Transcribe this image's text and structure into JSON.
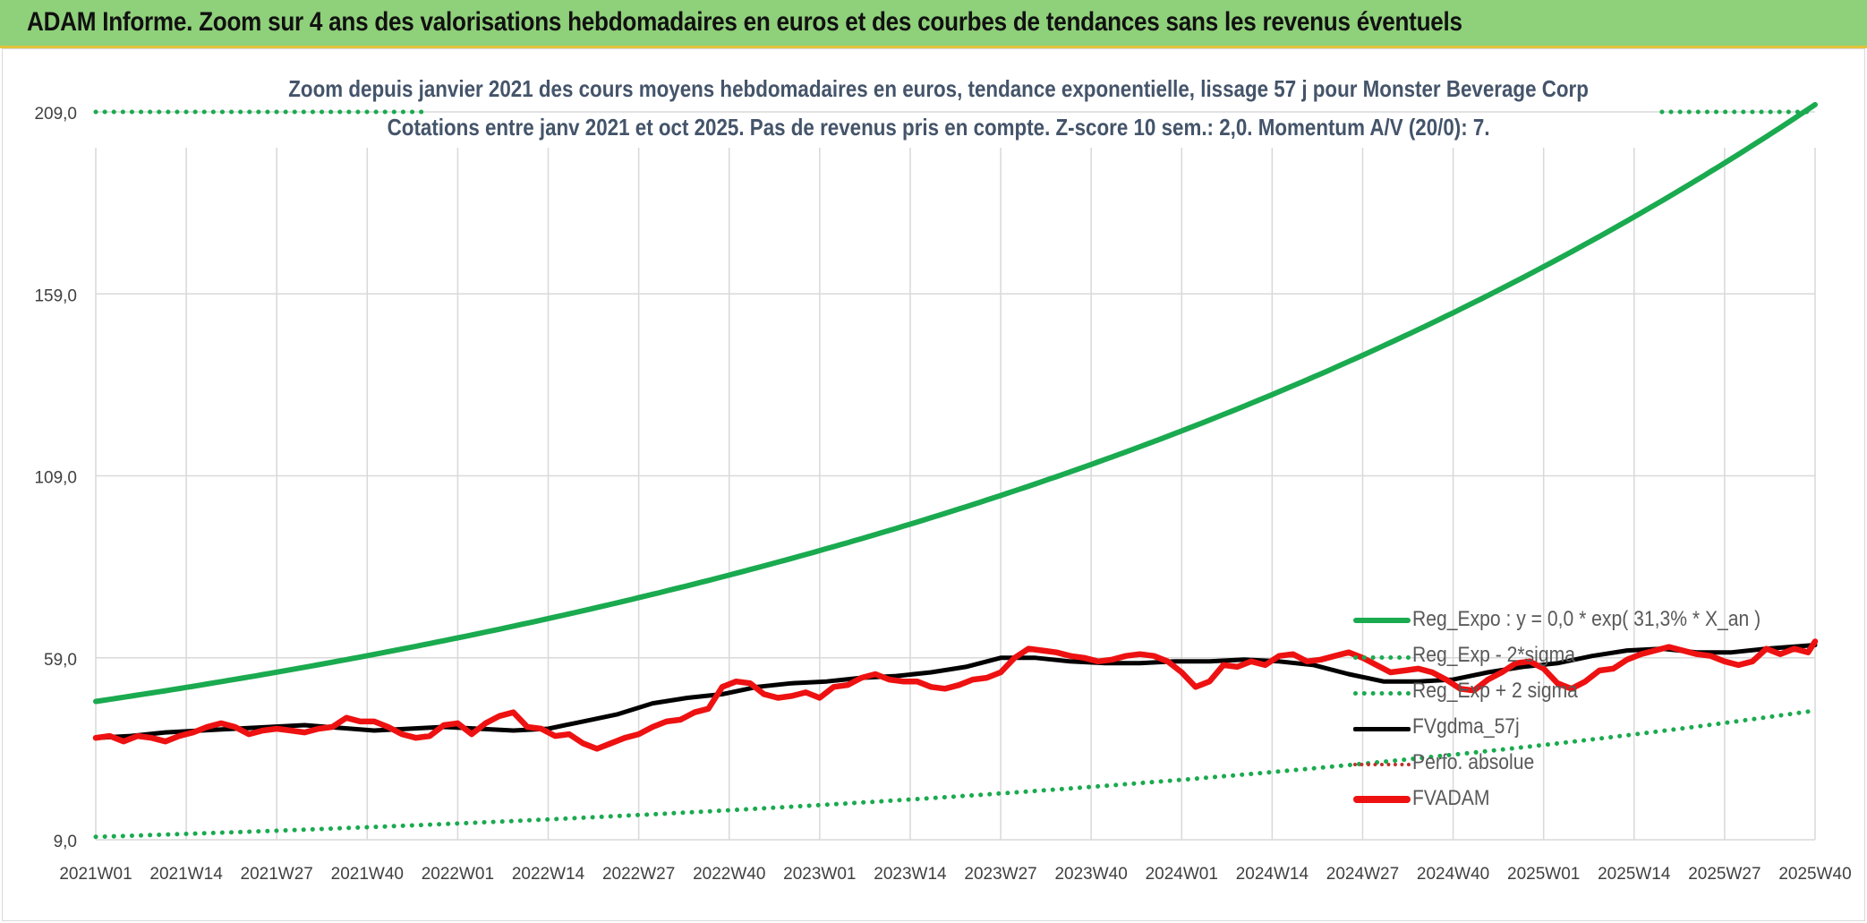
{
  "banner": {
    "title": "ADAM Informe. Zoom sur 4 ans des valorisations hebdomadaires en euros et des courbes de tendances sans les revenus éventuels"
  },
  "colors": {
    "banner_bg": "#8fd07a",
    "reg_expo": "#1aaa4f",
    "fvgdma": "#000000",
    "fvadam": "#ee1111",
    "perfo": "#c0302a",
    "grid": "#d9d9d9",
    "axis_text": "#404040",
    "title_text": "#44546a"
  },
  "chart_data": {
    "type": "line",
    "title": "Zoom depuis janvier 2021 des cours moyens hebdomadaires en euros, tendance exponentielle, lissage 57 j pour Monster Beverage Corp",
    "subtitle": "Cotations entre janv 2021 et oct 2025. Pas de revenus pris en compte. Z-score 10 sem.: 2,0. Momentum A/V (20/0): 7.",
    "xlabel": "",
    "ylabel": "",
    "ylim": [
      9,
      209
    ],
    "y_ticks": [
      "209,0",
      "159,0",
      "109,0",
      "59,0",
      "9,0"
    ],
    "y_tick_values": [
      209,
      159,
      109,
      59,
      9
    ],
    "x_ticks": [
      "2021W01",
      "2021W14",
      "2021W27",
      "2021W40",
      "2022W01",
      "2022W14",
      "2022W27",
      "2022W40",
      "2023W01",
      "2023W14",
      "2023W27",
      "2023W40",
      "2024W01",
      "2024W14",
      "2024W27",
      "2024W40",
      "2025W01",
      "2025W14",
      "2025W27",
      "2025W40"
    ],
    "x_range_weeks": [
      0,
      247
    ],
    "grid": true,
    "legend_position": "bottom-right",
    "series": [
      {
        "name": "Reg_Expo : y = 0,0 * exp( 31,3% *  X_an )",
        "style": "solid-green",
        "formula": "exponential",
        "start": 47.0,
        "end": 211.0
      },
      {
        "name": "Reg_Exp - 2*sigma",
        "style": "dotted-green",
        "formula": "exponential",
        "start": 9.8,
        "end": 44.5
      },
      {
        "name": "Reg_Exp + 2 sigma",
        "style": "dotted-green",
        "formula": "exponential",
        "start": 209.0,
        "end": 209.0
      },
      {
        "name": "FVgdma_57j",
        "style": "solid-black",
        "x": [
          0,
          5,
          10,
          20,
          30,
          40,
          50,
          60,
          65,
          70,
          75,
          80,
          85,
          90,
          95,
          100,
          105,
          110,
          115,
          120,
          125,
          130,
          135,
          140,
          145,
          150,
          155,
          160,
          165,
          170,
          175,
          180,
          185,
          190,
          195,
          200,
          205,
          210,
          215,
          220,
          225,
          230,
          235,
          240,
          247
        ],
        "values": [
          37.0,
          37.5,
          38.5,
          39.5,
          40.5,
          39.0,
          40.0,
          39.0,
          39.5,
          41.5,
          43.5,
          46.5,
          48.0,
          49.0,
          51.0,
          52.0,
          52.5,
          53.5,
          54.0,
          55.0,
          56.5,
          59.0,
          59.0,
          58.0,
          57.5,
          57.5,
          58.0,
          58.0,
          58.5,
          58.0,
          57.0,
          54.5,
          52.5,
          52.5,
          53.0,
          55.0,
          56.5,
          57.5,
          59.5,
          61.0,
          61.5,
          60.5,
          60.5,
          61.5,
          62.5
        ]
      },
      {
        "name": "Perfo. absolue",
        "style": "dotted-red",
        "values": []
      },
      {
        "name": "FVADAM",
        "style": "solid-red",
        "x": [
          0,
          2,
          4,
          6,
          8,
          10,
          12,
          14,
          16,
          18,
          20,
          22,
          24,
          26,
          28,
          30,
          32,
          34,
          36,
          38,
          40,
          42,
          44,
          46,
          48,
          50,
          52,
          54,
          56,
          58,
          60,
          62,
          64,
          66,
          68,
          70,
          72,
          74,
          76,
          78,
          80,
          82,
          84,
          86,
          88,
          90,
          92,
          94,
          96,
          98,
          100,
          102,
          104,
          106,
          108,
          110,
          112,
          114,
          116,
          118,
          120,
          122,
          124,
          126,
          128,
          130,
          132,
          134,
          136,
          138,
          140,
          142,
          144,
          146,
          148,
          150,
          152,
          154,
          156,
          158,
          160,
          162,
          164,
          166,
          168,
          170,
          172,
          174,
          176,
          178,
          180,
          182,
          184,
          186,
          188,
          190,
          192,
          194,
          196,
          198,
          200,
          202,
          204,
          206,
          208,
          210,
          212,
          214,
          216,
          218,
          220,
          222,
          224,
          226,
          228,
          230,
          232,
          234,
          236,
          238,
          240,
          242,
          244,
          246,
          247
        ],
        "values": [
          37.0,
          37.5,
          36.0,
          37.5,
          37.0,
          36.0,
          37.5,
          38.5,
          40.0,
          41.0,
          40.0,
          38.0,
          39.0,
          39.5,
          39.0,
          38.5,
          39.5,
          40.0,
          42.5,
          41.5,
          41.5,
          40.0,
          38.0,
          37.0,
          37.5,
          40.5,
          41.0,
          38.0,
          41.0,
          43.0,
          44.0,
          40.0,
          39.5,
          37.5,
          38.0,
          35.5,
          34.0,
          35.5,
          37.0,
          38.0,
          40.0,
          41.5,
          42.0,
          44.0,
          45.0,
          51.0,
          52.5,
          52.0,
          49.0,
          48.0,
          48.5,
          49.5,
          48.0,
          51.0,
          51.5,
          53.5,
          54.5,
          53.0,
          52.5,
          52.5,
          51.0,
          50.5,
          51.5,
          53.0,
          53.5,
          55.0,
          59.0,
          61.5,
          61.0,
          60.5,
          59.5,
          59.0,
          58.0,
          58.5,
          59.5,
          60.0,
          59.5,
          58.0,
          55.0,
          51.0,
          52.5,
          57.0,
          56.5,
          58.0,
          57.0,
          59.5,
          60.0,
          58.0,
          58.5,
          59.5,
          60.5,
          59.0,
          57.0,
          55.0,
          55.5,
          56.0,
          55.0,
          53.0,
          50.5,
          50.0,
          53.0,
          55.0,
          57.5,
          58.0,
          56.0,
          52.0,
          50.5,
          52.5,
          55.5,
          56.0,
          58.5,
          60.0,
          61.0,
          62.0,
          61.0,
          60.0,
          59.5,
          58.0,
          57.0,
          58.0,
          61.5,
          60.0,
          61.5,
          60.5,
          63.5
        ]
      }
    ]
  }
}
